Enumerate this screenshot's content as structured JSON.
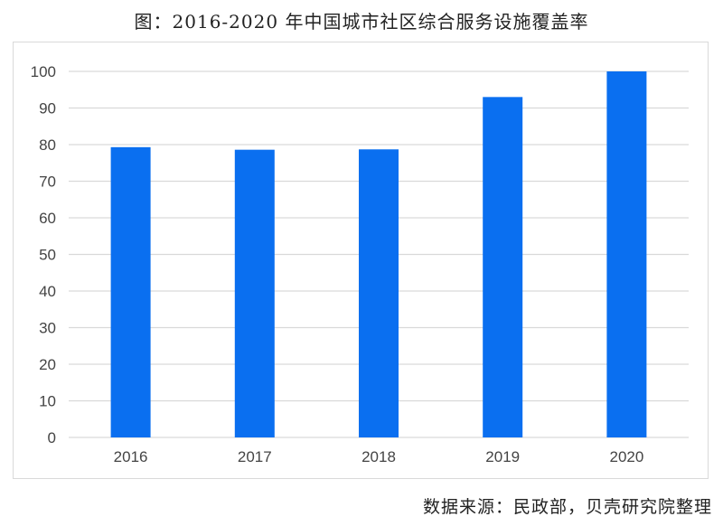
{
  "title": "图：2016-2020 年中国城市社区综合服务设施覆盖率",
  "source": "数据来源：民政部，贝壳研究院整理",
  "chart_data": {
    "type": "bar",
    "title": "图：2016-2020 年中国城市社区综合服务设施覆盖率",
    "xlabel": "",
    "ylabel": "",
    "categories": [
      "2016",
      "2017",
      "2018",
      "2019",
      "2020"
    ],
    "values": [
      79.3,
      78.6,
      78.7,
      93.0,
      100.0
    ],
    "ylim": [
      0,
      100
    ],
    "yticks": [
      0,
      10,
      20,
      30,
      40,
      50,
      60,
      70,
      80,
      90,
      100
    ],
    "grid": true,
    "legend": "none",
    "bar_color": "#0a6ff0",
    "grid_color": "#d9d9d9"
  }
}
